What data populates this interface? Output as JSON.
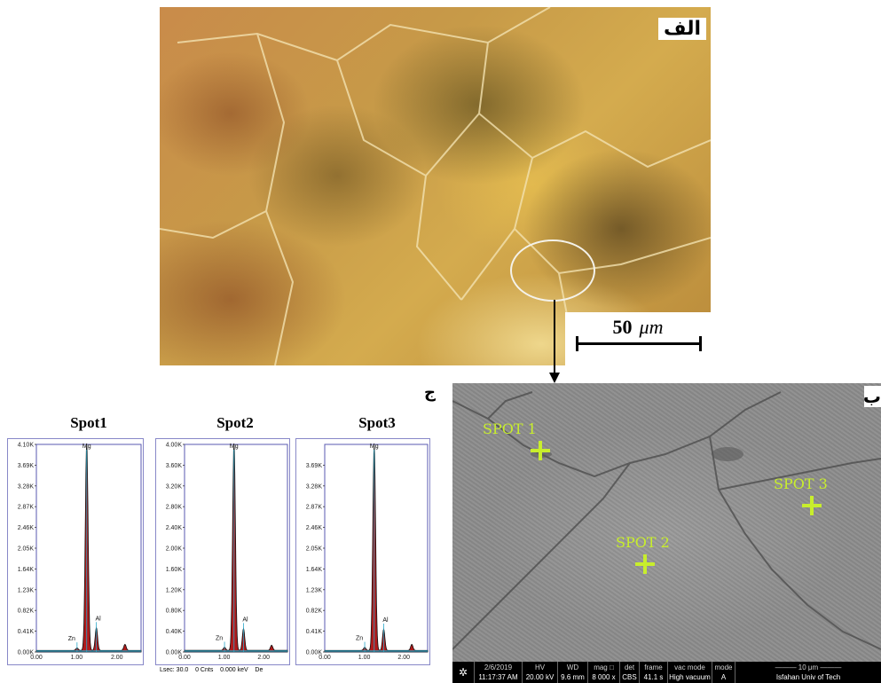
{
  "figure": {
    "label_alef": "الف",
    "label_be": "ب",
    "label_jim": "ج",
    "scale_value": "50",
    "scale_unit": "μm"
  },
  "sem": {
    "spots": [
      {
        "label": "SPOT 1",
        "name": "spot-1"
      },
      {
        "label": "SPOT 2",
        "name": "spot-2"
      },
      {
        "label": "SPOT 3",
        "name": "spot-3"
      }
    ],
    "info_bar": {
      "date": "2/6/2019",
      "time": "11:17:37 AM",
      "hv_header": "HV",
      "hv": "20.00 kV",
      "wd_header": "WD",
      "wd": "9.6 mm",
      "mag_header": "mag □",
      "mag": "8 000 x",
      "det_header": "det",
      "det": "CBS",
      "frame_header": "frame",
      "frame": "41.1 s",
      "vac_header": "vac mode",
      "vac": "High vacuum",
      "mode_header": "mode",
      "mode": "A",
      "scale": "10 μm",
      "institution": "Isfahan Univ of Tech"
    }
  },
  "eds": {
    "footer": {
      "lsec": "Lsec: 30.0",
      "cnts": "0 Cnts",
      "kev": "0.000 keV",
      "det": "De"
    },
    "element_labels": {
      "mg": "Mg",
      "al": "Al",
      "zn": "Zn"
    }
  },
  "chart_data": [
    {
      "type": "line",
      "title": "Spot1",
      "xlabel": "",
      "ylabel": "",
      "xlim": [
        0.0,
        2.6
      ],
      "x_ticks": [
        "0.00",
        "1.00",
        "2.00"
      ],
      "y_ticks": [
        "0.00K",
        "0.41K",
        "0.82K",
        "1.23K",
        "1.64K",
        "2.05K",
        "2.46K",
        "2.87K",
        "3.28K",
        "3.69K",
        "4.10K"
      ],
      "ylim": [
        0,
        4.1
      ],
      "peaks": [
        {
          "element": "Zn",
          "x": 1.01,
          "y": 0.05
        },
        {
          "element": "Mg",
          "x": 1.25,
          "y": 4.1
        },
        {
          "element": "Al",
          "x": 1.49,
          "y": 0.45
        },
        {
          "element": "",
          "x": 2.2,
          "y": 0.12
        }
      ]
    },
    {
      "type": "line",
      "title": "Spot2",
      "xlabel": "",
      "ylabel": "",
      "xlim": [
        0.0,
        2.6
      ],
      "x_ticks": [
        "0.00",
        "1.00",
        "2.00"
      ],
      "y_ticks": [
        "0.00K",
        "0.40K",
        "0.80K",
        "1.20K",
        "1.60K",
        "2.00K",
        "2.40K",
        "2.80K",
        "3.20K",
        "3.60K",
        "4.00K"
      ],
      "ylim": [
        0,
        4.0
      ],
      "peaks": [
        {
          "element": "Zn",
          "x": 1.01,
          "y": 0.06
        },
        {
          "element": "Mg",
          "x": 1.25,
          "y": 4.0
        },
        {
          "element": "Al",
          "x": 1.49,
          "y": 0.42
        },
        {
          "element": "",
          "x": 2.2,
          "y": 0.1
        }
      ]
    },
    {
      "type": "line",
      "title": "Spot3",
      "xlabel": "",
      "ylabel": "",
      "xlim": [
        0.0,
        2.6
      ],
      "x_ticks": [
        "0.00",
        "1.00",
        "2.00"
      ],
      "y_ticks": [
        "0.00K",
        "0.41K",
        "0.82K",
        "1.23K",
        "1.64K",
        "2.05K",
        "2.46K",
        "2.87K",
        "3.28K",
        "3.69K"
      ],
      "ylim": [
        0,
        4.1
      ],
      "peaks": [
        {
          "element": "Zn",
          "x": 1.01,
          "y": 0.06
        },
        {
          "element": "Mg",
          "x": 1.25,
          "y": 4.05
        },
        {
          "element": "Al",
          "x": 1.49,
          "y": 0.42
        },
        {
          "element": "",
          "x": 2.2,
          "y": 0.12
        }
      ]
    }
  ]
}
